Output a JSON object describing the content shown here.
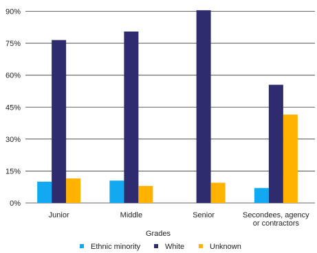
{
  "chart_data": {
    "type": "bar",
    "categories": [
      [
        "Junior"
      ],
      [
        "Middle"
      ],
      [
        "Senior"
      ],
      [
        "Secondees, agency",
        "or contractors"
      ]
    ],
    "series": [
      {
        "name": "Ethnic minority",
        "color": "#12a9f0",
        "values": [
          10,
          10.5,
          0,
          7
        ]
      },
      {
        "name": "White",
        "color": "#2e2b6e",
        "values": [
          76.5,
          80.5,
          90.5,
          55.5
        ]
      },
      {
        "name": "Unknown",
        "color": "#ffb300",
        "values": [
          11.5,
          8,
          9.5,
          41.5
        ]
      }
    ],
    "xlabel": "Grades",
    "ylabel": "",
    "ylim": [
      0,
      90
    ],
    "yticks": [
      0,
      15,
      30,
      45,
      60,
      75,
      90
    ],
    "ytick_labels": [
      "0%",
      "15%",
      "30%",
      "45%",
      "60%",
      "75%",
      "90%"
    ],
    "grid": true,
    "legend_position": "bottom"
  }
}
